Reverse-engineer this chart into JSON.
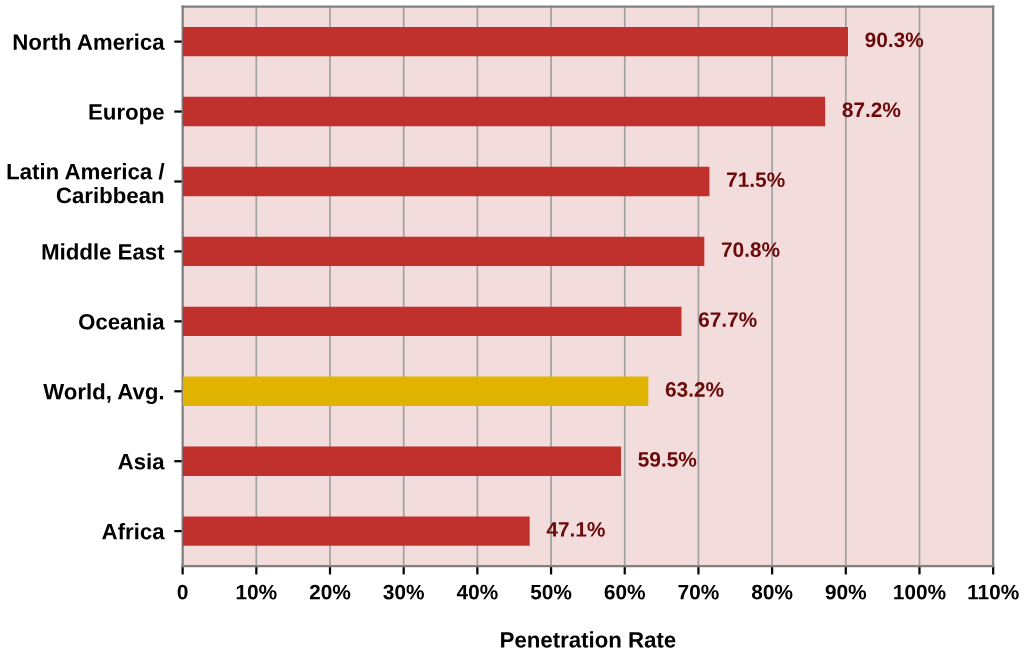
{
  "chart_data": {
    "type": "bar",
    "orientation": "horizontal",
    "xlabel": "Penetration Rate",
    "categories": [
      "North America",
      "Europe",
      "Latin America /\nCaribbean",
      "Middle East",
      "Oceania",
      "World, Avg.",
      "Asia",
      "Africa"
    ],
    "values": [
      90.3,
      87.2,
      71.5,
      70.8,
      67.7,
      63.2,
      59.5,
      47.1
    ],
    "colors": [
      "#c0302c",
      "#c0302c",
      "#c0302c",
      "#c0302c",
      "#c0302c",
      "#e0b400",
      "#c0302c",
      "#c0302c"
    ],
    "value_labels": [
      "90.3%",
      "87.2%",
      "71.5%",
      "70.8%",
      "67.7%",
      "63.2%",
      "59.5%",
      "47.1%"
    ],
    "xlim": [
      0,
      110
    ],
    "xticks": [
      {
        "value": 0,
        "label": "0"
      },
      {
        "value": 10,
        "label": "10%"
      },
      {
        "value": 20,
        "label": "20%"
      },
      {
        "value": 30,
        "label": "30%"
      },
      {
        "value": 40,
        "label": "40%"
      },
      {
        "value": 50,
        "label": "50%"
      },
      {
        "value": 60,
        "label": "60%"
      },
      {
        "value": 70,
        "label": "70%"
      },
      {
        "value": 80,
        "label": "80%"
      },
      {
        "value": 90,
        "label": "90%"
      },
      {
        "value": 100,
        "label": "100%"
      },
      {
        "value": 110,
        "label": "110%"
      }
    ],
    "grid": "x"
  }
}
